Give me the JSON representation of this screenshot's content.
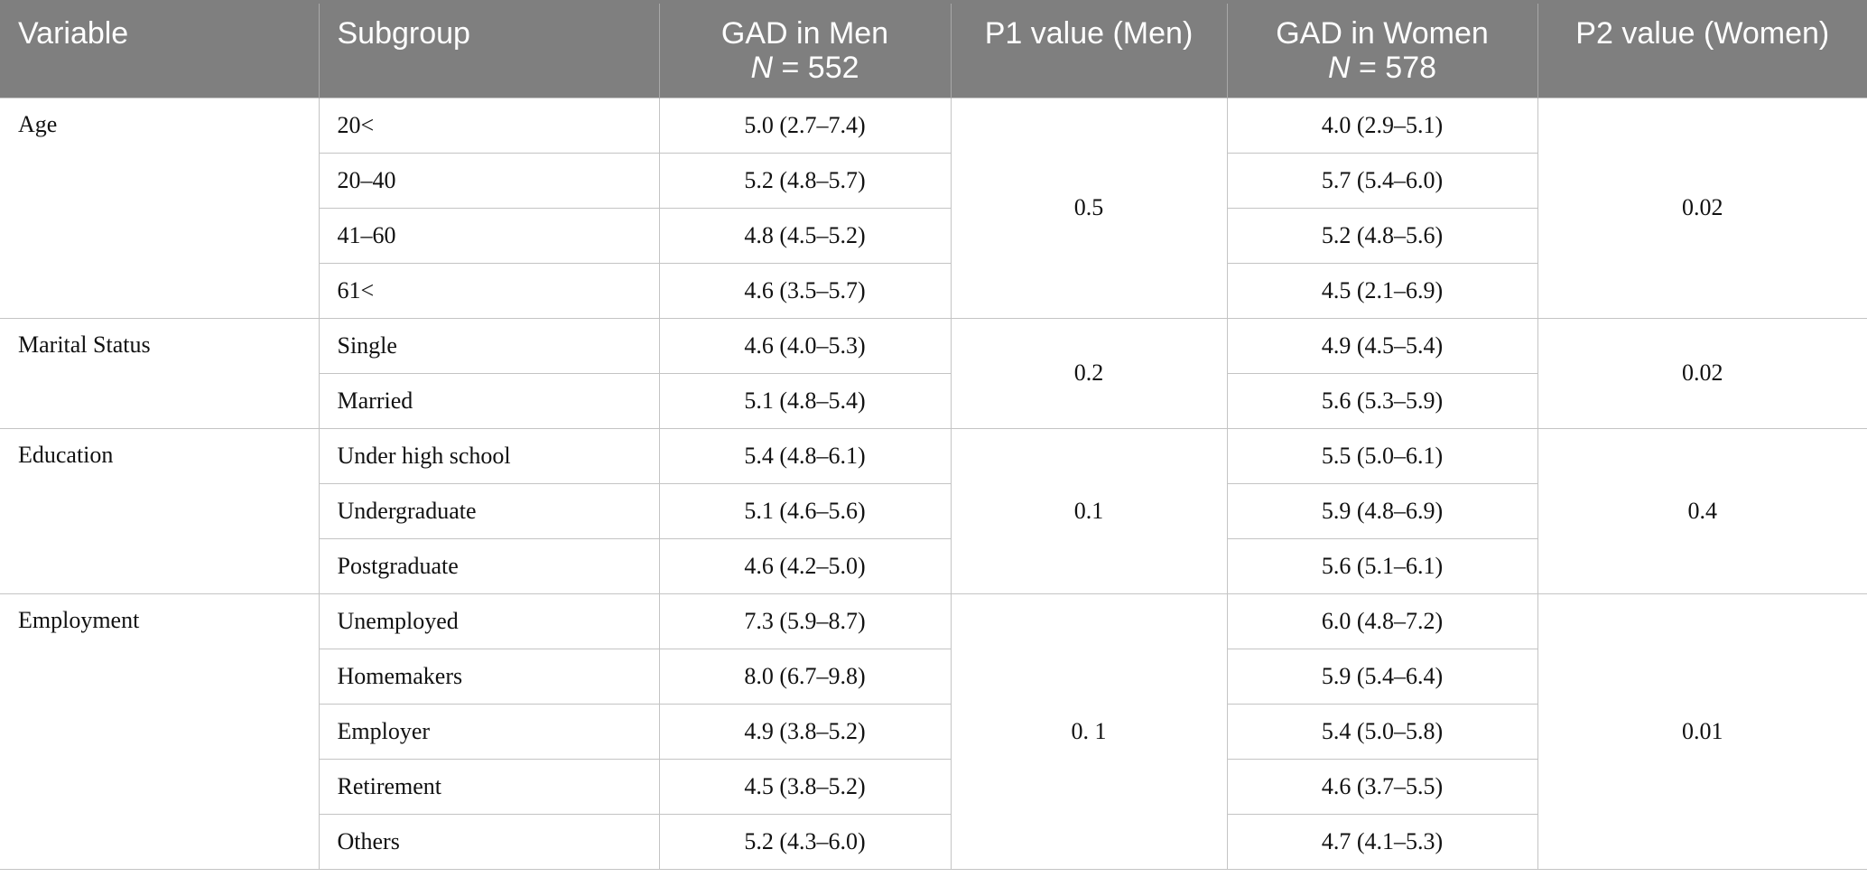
{
  "headers": {
    "variable": "Variable",
    "subgroup": "Subgroup",
    "gad_men_title": "GAD in Men",
    "gad_men_n_label": "N",
    "gad_men_n_value": " = 552",
    "p1": "P1 value (Men)",
    "gad_women_title": "GAD in Women",
    "gad_women_n_label": "N",
    "gad_women_n_value": " = 578",
    "p2": "P2 value (Women)"
  },
  "groups": [
    {
      "variable": "Age",
      "p1": "0.5",
      "p2": "0.02",
      "rows": [
        {
          "subgroup": "20<",
          "men": "5.0 (2.7–7.4)",
          "women": "4.0 (2.9–5.1)"
        },
        {
          "subgroup": "20–40",
          "men": "5.2 (4.8–5.7)",
          "women": "5.7 (5.4–6.0)"
        },
        {
          "subgroup": "41–60",
          "men": "4.8 (4.5–5.2)",
          "women": "5.2 (4.8–5.6)"
        },
        {
          "subgroup": "61<",
          "men": "4.6 (3.5–5.7)",
          "women": "4.5 (2.1–6.9)"
        }
      ]
    },
    {
      "variable": "Marital Status",
      "p1": "0.2",
      "p2": "0.02",
      "rows": [
        {
          "subgroup": "Single",
          "men": "4.6 (4.0–5.3)",
          "women": "4.9 (4.5–5.4)"
        },
        {
          "subgroup": "Married",
          "men": "5.1 (4.8–5.4)",
          "women": "5.6 (5.3–5.9)"
        }
      ]
    },
    {
      "variable": "Education",
      "p1": "0.1",
      "p2": "0.4",
      "rows": [
        {
          "subgroup": "Under high school",
          "men": "5.4 (4.8–6.1)",
          "women": "5.5 (5.0–6.1)"
        },
        {
          "subgroup": "Undergraduate",
          "men": "5.1 (4.6–5.6)",
          "women": "5.9 (4.8–6.9)"
        },
        {
          "subgroup": "Postgraduate",
          "men": "4.6 (4.2–5.0)",
          "women": "5.6 (5.1–6.1)"
        }
      ]
    },
    {
      "variable": "Employment",
      "p1": "0. 1",
      "p2": "0.01",
      "rows": [
        {
          "subgroup": "Unemployed",
          "men": "7.3 (5.9–8.7)",
          "women": "6.0 (4.8–7.2)"
        },
        {
          "subgroup": "Homemakers",
          "men": "8.0 (6.7–9.8)",
          "women": "5.9 (5.4–6.4)"
        },
        {
          "subgroup": "Employer",
          "men": "4.9 (3.8–5.2)",
          "women": "5.4 (5.0–5.8)"
        },
        {
          "subgroup": "Retirement",
          "men": "4.5 (3.8–5.2)",
          "women": "4.6 (3.7–5.5)"
        },
        {
          "subgroup": "Others",
          "men": "5.2 (4.3–6.0)",
          "women": "4.7 (4.1–5.3)"
        }
      ]
    }
  ]
}
